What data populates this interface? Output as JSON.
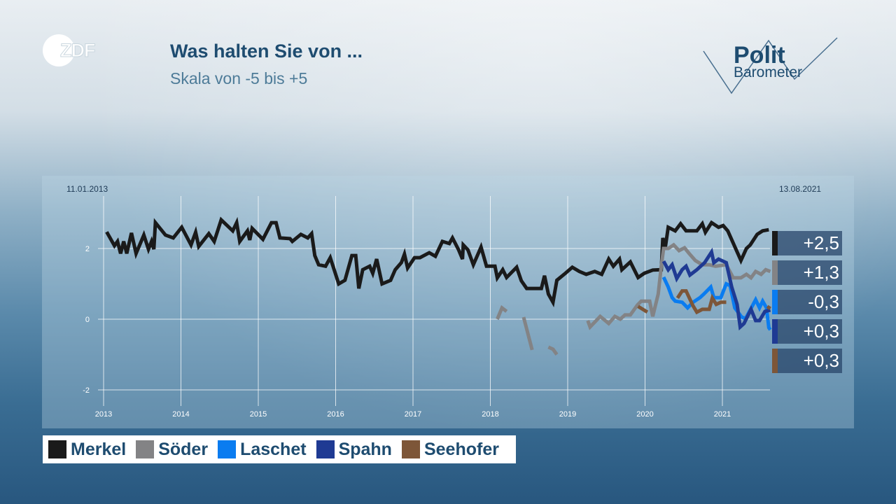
{
  "header": {
    "title": "Was halten Sie von ...",
    "subtitle": "Skala von -5 bis +5"
  },
  "logos": {
    "zdf": "ZDF",
    "politbarometer_line1": "Polit",
    "politbarometer_line2": "Barometer"
  },
  "chart_data": {
    "type": "line",
    "title": "Was halten Sie von ...",
    "subtitle": "Skala von -5 bis +5",
    "start_date_label": "11.01.2013",
    "end_date_label": "13.08.2021",
    "x_ticks": [
      "2013",
      "2014",
      "2015",
      "2016",
      "2017",
      "2018",
      "2019",
      "2020",
      "2021"
    ],
    "y_ticks": [
      "2",
      "0",
      "-2"
    ],
    "y_tick_values": [
      2,
      0,
      -2
    ],
    "xlim": [
      2013,
      2021.62
    ],
    "ylim": [
      -2.5,
      3
    ],
    "grid": true,
    "legend_position": "bottom-left",
    "series": [
      {
        "name": "Merkel",
        "color": "#1a1a1a",
        "latest": "+2,5",
        "points": [
          [
            2013.04,
            2.47
          ],
          [
            2013.14,
            2.08
          ],
          [
            2013.18,
            2.2
          ],
          [
            2013.22,
            1.86
          ],
          [
            2013.26,
            2.2
          ],
          [
            2013.3,
            1.86
          ],
          [
            2013.36,
            2.44
          ],
          [
            2013.42,
            1.86
          ],
          [
            2013.52,
            2.38
          ],
          [
            2013.58,
            1.98
          ],
          [
            2013.62,
            2.2
          ],
          [
            2013.65,
            1.98
          ],
          [
            2013.67,
            2.73
          ],
          [
            2013.8,
            2.38
          ],
          [
            2013.9,
            2.3
          ],
          [
            2014.01,
            2.6
          ],
          [
            2014.13,
            2.1
          ],
          [
            2014.19,
            2.46
          ],
          [
            2014.23,
            2.06
          ],
          [
            2014.36,
            2.42
          ],
          [
            2014.43,
            2.2
          ],
          [
            2014.52,
            2.81
          ],
          [
            2014.67,
            2.5
          ],
          [
            2014.72,
            2.73
          ],
          [
            2014.76,
            2.2
          ],
          [
            2014.86,
            2.5
          ],
          [
            2014.89,
            2.24
          ],
          [
            2014.92,
            2.57
          ],
          [
            2015.06,
            2.26
          ],
          [
            2015.17,
            2.73
          ],
          [
            2015.23,
            2.73
          ],
          [
            2015.28,
            2.3
          ],
          [
            2015.41,
            2.28
          ],
          [
            2015.44,
            2.2
          ],
          [
            2015.55,
            2.4
          ],
          [
            2015.64,
            2.3
          ],
          [
            2015.69,
            2.42
          ],
          [
            2015.73,
            1.8
          ],
          [
            2015.78,
            1.54
          ],
          [
            2015.87,
            1.5
          ],
          [
            2015.93,
            1.74
          ],
          [
            2016.04,
            1.0
          ],
          [
            2016.12,
            1.1
          ],
          [
            2016.21,
            1.8
          ],
          [
            2016.26,
            1.8
          ],
          [
            2016.3,
            0.87
          ],
          [
            2016.35,
            1.4
          ],
          [
            2016.44,
            1.5
          ],
          [
            2016.48,
            1.3
          ],
          [
            2016.53,
            1.7
          ],
          [
            2016.6,
            1.0
          ],
          [
            2016.71,
            1.1
          ],
          [
            2016.77,
            1.4
          ],
          [
            2016.85,
            1.6
          ],
          [
            2016.89,
            1.84
          ],
          [
            2016.93,
            1.45
          ],
          [
            2017.02,
            1.74
          ],
          [
            2017.09,
            1.74
          ],
          [
            2017.21,
            1.88
          ],
          [
            2017.29,
            1.78
          ],
          [
            2017.38,
            2.2
          ],
          [
            2017.47,
            2.14
          ],
          [
            2017.51,
            2.3
          ],
          [
            2017.59,
            1.96
          ],
          [
            2017.64,
            1.7
          ],
          [
            2017.65,
            2.1
          ],
          [
            2017.71,
            1.96
          ],
          [
            2017.78,
            1.54
          ],
          [
            2017.88,
            2.04
          ],
          [
            2017.95,
            1.5
          ],
          [
            2018.06,
            1.5
          ],
          [
            2018.09,
            1.17
          ],
          [
            2018.16,
            1.4
          ],
          [
            2018.21,
            1.18
          ],
          [
            2018.34,
            1.47
          ],
          [
            2018.4,
            1.09
          ],
          [
            2018.47,
            0.87
          ],
          [
            2018.66,
            0.87
          ],
          [
            2018.7,
            1.23
          ],
          [
            2018.75,
            0.71
          ],
          [
            2018.81,
            0.48
          ],
          [
            2018.86,
            1.1
          ],
          [
            2018.97,
            1.3
          ],
          [
            2019.06,
            1.47
          ],
          [
            2019.15,
            1.35
          ],
          [
            2019.24,
            1.27
          ],
          [
            2019.35,
            1.35
          ],
          [
            2019.44,
            1.27
          ],
          [
            2019.53,
            1.7
          ],
          [
            2019.59,
            1.5
          ],
          [
            2019.67,
            1.7
          ],
          [
            2019.7,
            1.4
          ],
          [
            2019.81,
            1.62
          ],
          [
            2019.91,
            1.18
          ],
          [
            2019.99,
            1.3
          ],
          [
            2020.1,
            1.39
          ],
          [
            2020.21,
            1.4
          ],
          [
            2020.23,
            2.3
          ],
          [
            2020.26,
            2.0
          ],
          [
            2020.3,
            2.6
          ],
          [
            2020.39,
            2.5
          ],
          [
            2020.46,
            2.7
          ],
          [
            2020.53,
            2.5
          ],
          [
            2020.67,
            2.5
          ],
          [
            2020.74,
            2.7
          ],
          [
            2020.78,
            2.46
          ],
          [
            2020.86,
            2.73
          ],
          [
            2020.95,
            2.6
          ],
          [
            2021.01,
            2.65
          ],
          [
            2021.07,
            2.5
          ],
          [
            2021.24,
            1.66
          ],
          [
            2021.31,
            2.0
          ],
          [
            2021.36,
            2.1
          ],
          [
            2021.45,
            2.4
          ],
          [
            2021.52,
            2.5
          ],
          [
            2021.6,
            2.53
          ]
        ]
      },
      {
        "name": "Söder",
        "color": "#838385",
        "latest": "+1,3",
        "points": [
          [
            2018.09,
            0
          ],
          [
            2018.15,
            0.32
          ],
          [
            2018.21,
            0.22
          ],
          null,
          [
            2018.43,
            0.06
          ],
          [
            2018.54,
            -0.87
          ],
          null,
          [
            2018.75,
            -0.79
          ],
          [
            2018.81,
            -0.85
          ],
          [
            2018.86,
            -1.0
          ],
          null,
          [
            2019.26,
            -0.04
          ],
          [
            2019.29,
            -0.22
          ],
          [
            2019.42,
            0.08
          ],
          [
            2019.53,
            -0.12
          ],
          [
            2019.61,
            0.08
          ],
          [
            2019.68,
            0.0
          ],
          [
            2019.74,
            0.12
          ],
          [
            2019.81,
            0.12
          ],
          [
            2019.9,
            0.4
          ],
          [
            2019.95,
            0.51
          ],
          [
            2020.06,
            0.51
          ],
          [
            2020.1,
            0.08
          ],
          [
            2020.17,
            0.71
          ],
          [
            2020.21,
            1.5
          ],
          [
            2020.24,
            2.0
          ],
          [
            2020.3,
            2.0
          ],
          [
            2020.37,
            2.1
          ],
          [
            2020.44,
            1.94
          ],
          [
            2020.51,
            2.02
          ],
          [
            2020.57,
            1.86
          ],
          [
            2020.65,
            1.66
          ],
          [
            2020.74,
            1.54
          ],
          [
            2020.83,
            1.54
          ],
          [
            2020.91,
            1.5
          ],
          [
            2021.05,
            1.54
          ],
          [
            2021.14,
            1.17
          ],
          [
            2021.24,
            1.17
          ],
          [
            2021.31,
            1.27
          ],
          [
            2021.37,
            1.17
          ],
          [
            2021.43,
            1.35
          ],
          [
            2021.5,
            1.27
          ],
          [
            2021.56,
            1.4
          ],
          [
            2021.62,
            1.35
          ]
        ]
      },
      {
        "name": "Laschet",
        "color": "#0a7cf0",
        "latest": "-0,3",
        "points": [
          [
            2020.24,
            1.19
          ],
          [
            2020.3,
            0.91
          ],
          [
            2020.35,
            0.61
          ],
          [
            2020.39,
            0.51
          ],
          [
            2020.48,
            0.48
          ],
          [
            2020.55,
            0.32
          ],
          [
            2020.62,
            0.48
          ],
          [
            2020.71,
            0.61
          ],
          [
            2020.76,
            0.71
          ],
          [
            2020.85,
            0.91
          ],
          [
            2020.89,
            0.61
          ],
          [
            2020.98,
            0.61
          ],
          [
            2021.05,
            1.0
          ],
          [
            2021.1,
            0.95
          ],
          [
            2021.16,
            0.32
          ],
          [
            2021.25,
            0.06
          ],
          [
            2021.3,
            0.02
          ],
          [
            2021.43,
            0.55
          ],
          [
            2021.48,
            0.32
          ],
          [
            2021.52,
            0.51
          ],
          [
            2021.57,
            0.32
          ],
          [
            2021.6,
            -0.24
          ],
          [
            2021.62,
            -0.3
          ]
        ]
      },
      {
        "name": "Spahn",
        "color": "#1f3a93",
        "latest": "+0,3",
        "points": [
          [
            2020.24,
            1.64
          ],
          [
            2020.3,
            1.4
          ],
          [
            2020.35,
            1.54
          ],
          [
            2020.41,
            1.15
          ],
          [
            2020.48,
            1.4
          ],
          [
            2020.53,
            1.5
          ],
          [
            2020.58,
            1.25
          ],
          [
            2020.67,
            1.4
          ],
          [
            2020.77,
            1.6
          ],
          [
            2020.86,
            1.9
          ],
          [
            2020.89,
            1.6
          ],
          [
            2020.95,
            1.7
          ],
          [
            2021.05,
            1.6
          ],
          [
            2021.12,
            0.91
          ],
          [
            2021.19,
            0.42
          ],
          [
            2021.23,
            -0.22
          ],
          [
            2021.28,
            -0.12
          ],
          [
            2021.37,
            0.28
          ],
          [
            2021.43,
            -0.04
          ],
          [
            2021.48,
            -0.04
          ],
          [
            2021.55,
            0.22
          ],
          [
            2021.62,
            0.26
          ]
        ]
      },
      {
        "name": "Seehofer",
        "color": "#7d5638",
        "latest": "+0,3",
        "points": [
          [
            2019.91,
            0.36
          ],
          [
            2020.03,
            0.2
          ],
          null,
          [
            2020.42,
            0.6
          ],
          [
            2020.48,
            0.8
          ],
          [
            2020.53,
            0.8
          ],
          [
            2020.62,
            0.38
          ],
          [
            2020.67,
            0.2
          ],
          [
            2020.74,
            0.28
          ],
          [
            2020.83,
            0.28
          ],
          [
            2020.87,
            0.6
          ],
          [
            2020.92,
            0.42
          ],
          [
            2020.98,
            0.48
          ],
          [
            2021.05,
            0.48
          ],
          null,
          [
            2021.58,
            0.36
          ],
          [
            2021.62,
            0.3
          ]
        ]
      }
    ]
  }
}
